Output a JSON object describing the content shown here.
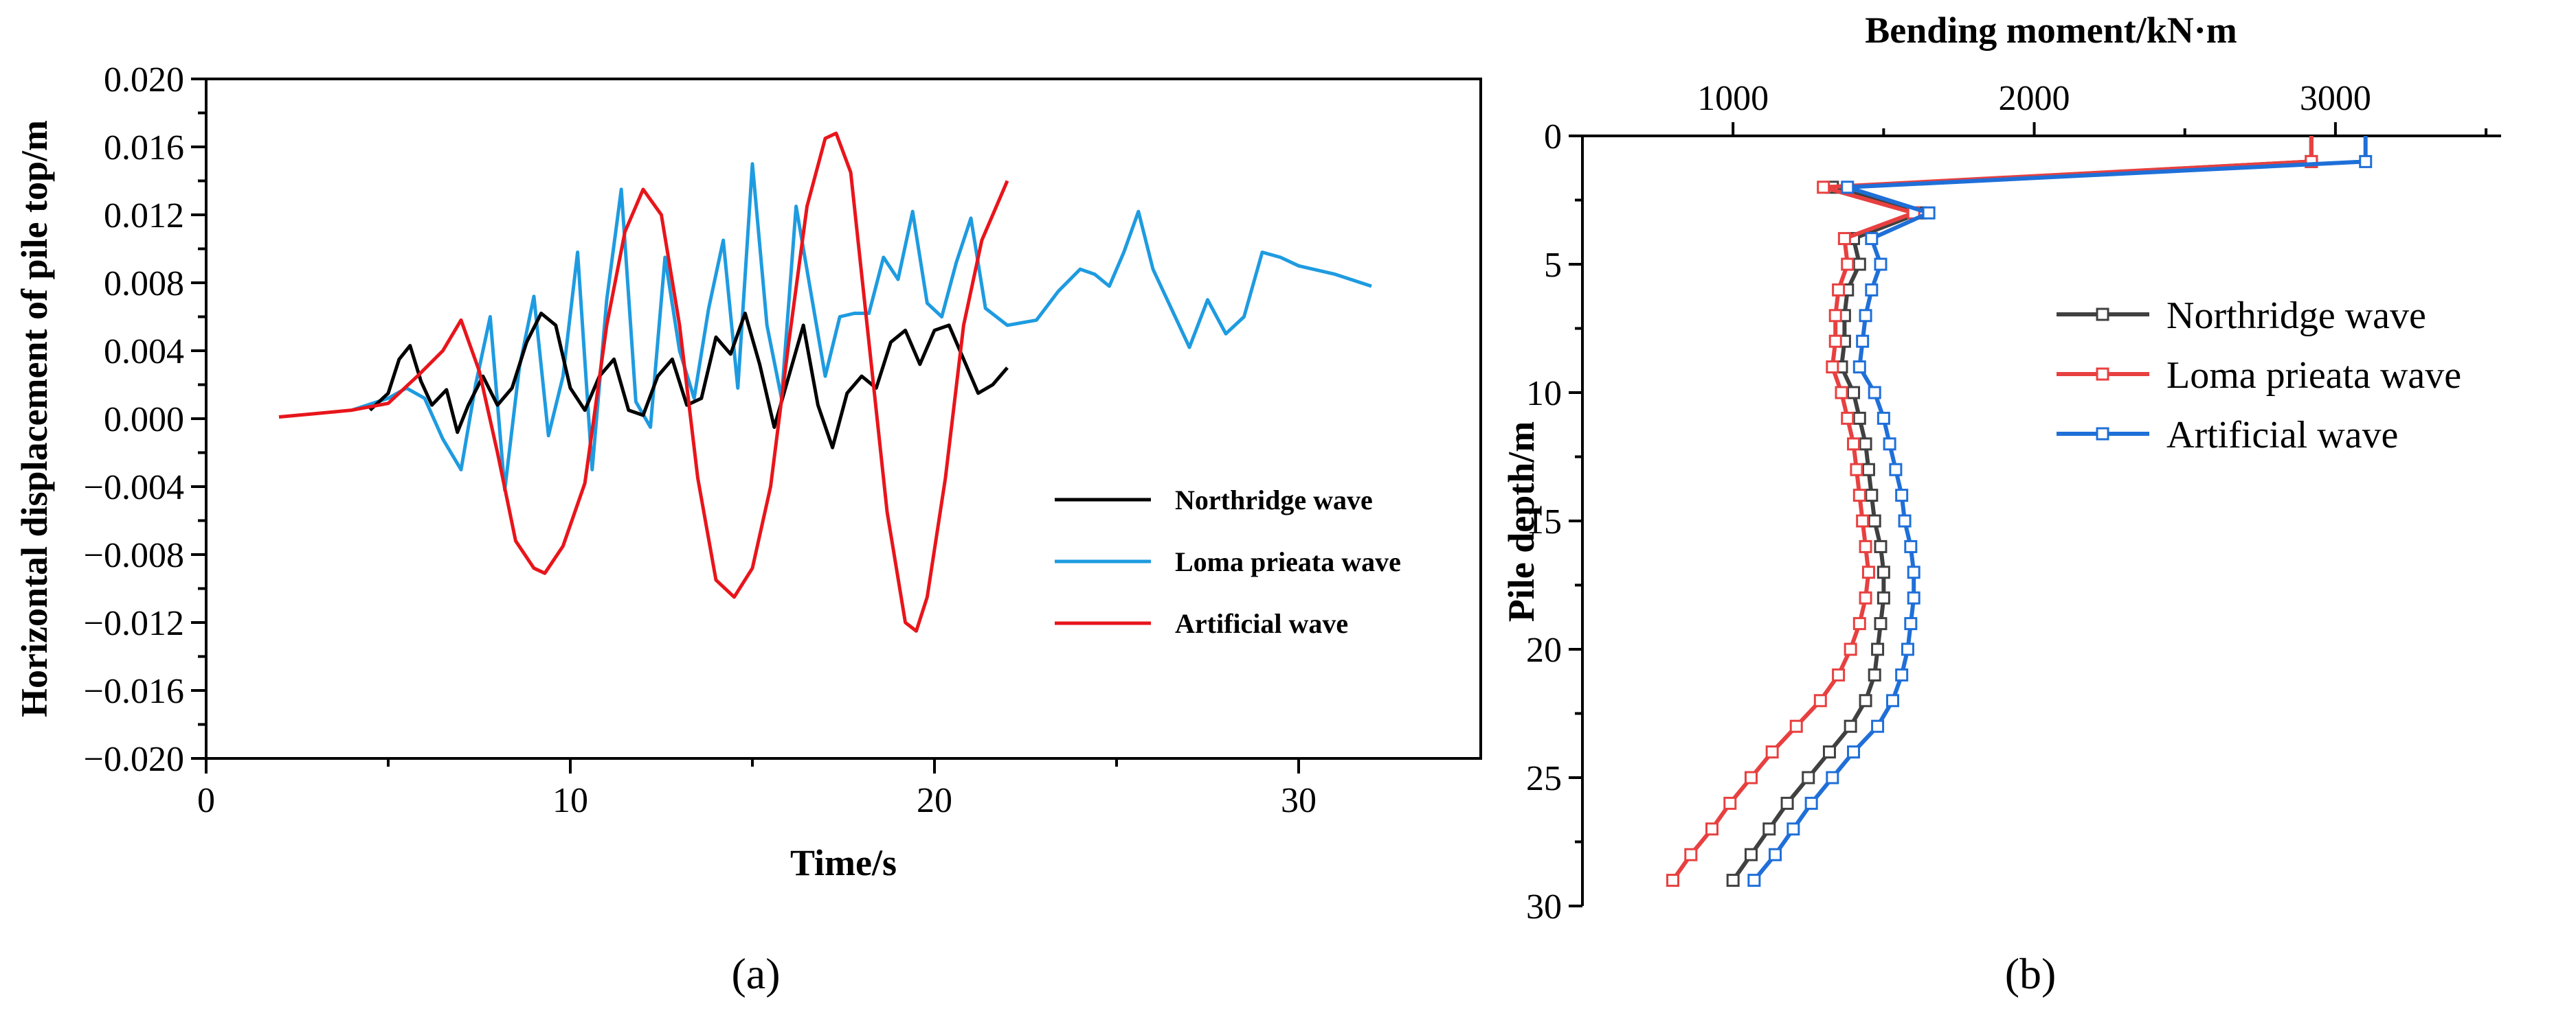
{
  "chart_data": [
    {
      "id": "a",
      "type": "line",
      "panel_label": "(a)",
      "xlabel": "Time/s",
      "ylabel": "Horizontal displacement of pile top/m",
      "xlim": [
        0,
        35
      ],
      "ylim": [
        -0.02,
        0.02
      ],
      "xticks": [
        "0",
        "10",
        "20",
        "30"
      ],
      "xtick_values": [
        0,
        10,
        20,
        30
      ],
      "yticks": [
        "0.020",
        "0.016",
        "0.012",
        "0.008",
        "0.004",
        "0.000",
        "−0.004",
        "−0.008",
        "−0.012",
        "−0.016",
        "−0.020"
      ],
      "ytick_values": [
        0.02,
        0.016,
        0.012,
        0.008,
        0.004,
        0.0,
        -0.004,
        -0.008,
        -0.012,
        -0.016,
        -0.02
      ],
      "legend": {
        "position": "lower-right"
      },
      "series": [
        {
          "name": "Northridge wave",
          "color": "#000000",
          "x": [
            4.5,
            5.0,
            5.3,
            5.6,
            5.9,
            6.2,
            6.6,
            6.9,
            7.2,
            7.6,
            8.0,
            8.4,
            8.8,
            9.2,
            9.6,
            10.0,
            10.4,
            10.8,
            11.2,
            11.6,
            12.0,
            12.4,
            12.8,
            13.2,
            13.6,
            14.0,
            14.4,
            14.8,
            15.2,
            15.6,
            16.0,
            16.4,
            16.8,
            17.2,
            17.6,
            18.0,
            18.4,
            18.8,
            19.2,
            19.6,
            20.0,
            20.4,
            20.8,
            21.2,
            21.6,
            22.0
          ],
          "y": [
            0.0005,
            0.0015,
            0.0035,
            0.0043,
            0.0022,
            0.0008,
            0.0017,
            -0.0008,
            0.0008,
            0.0025,
            0.0008,
            0.0018,
            0.0045,
            0.0062,
            0.0055,
            0.0018,
            0.0005,
            0.0025,
            0.0035,
            0.0005,
            0.0002,
            0.0025,
            0.0035,
            0.0008,
            0.0012,
            0.0048,
            0.0038,
            0.0062,
            0.0032,
            -0.0005,
            0.0025,
            0.0055,
            0.0008,
            -0.0017,
            0.0015,
            0.0025,
            0.0018,
            0.0045,
            0.0052,
            0.0032,
            0.0052,
            0.0055,
            0.0035,
            0.0015,
            0.002,
            0.003
          ]
        },
        {
          "name": "Loma prieata wave",
          "color": "#1e9be0",
          "x": [
            4.0,
            5.0,
            5.5,
            6.0,
            6.5,
            7.0,
            7.4,
            7.8,
            8.2,
            8.6,
            9.0,
            9.4,
            9.8,
            10.2,
            10.6,
            11.0,
            11.4,
            11.8,
            12.2,
            12.6,
            13.0,
            13.4,
            13.8,
            14.2,
            14.6,
            15.0,
            15.4,
            15.8,
            16.2,
            16.6,
            17.0,
            17.4,
            17.8,
            18.2,
            18.6,
            19.0,
            19.4,
            19.8,
            20.2,
            20.6,
            21.0,
            21.4,
            22.0,
            22.8,
            23.4,
            24.0,
            24.4,
            24.8,
            25.2,
            25.6,
            26.0,
            26.5,
            27.0,
            27.5,
            28.0,
            28.5,
            29.0,
            29.5,
            30.0,
            31.0,
            32.0
          ],
          "y": [
            0.0005,
            0.0012,
            0.0018,
            0.0012,
            -0.0012,
            -0.003,
            0.002,
            0.006,
            -0.0042,
            0.003,
            0.0072,
            -0.001,
            0.0025,
            0.0098,
            -0.003,
            0.007,
            0.0135,
            0.001,
            -0.0005,
            0.0095,
            0.004,
            0.0012,
            0.0065,
            0.0105,
            0.0018,
            0.015,
            0.0055,
            0.0012,
            0.0125,
            0.0075,
            0.0025,
            0.006,
            0.0062,
            0.0062,
            0.0095,
            0.0082,
            0.0122,
            0.0068,
            0.006,
            0.0092,
            0.0118,
            0.0065,
            0.0055,
            0.0058,
            0.0075,
            0.0088,
            0.0085,
            0.0078,
            0.0098,
            0.0122,
            0.0088,
            0.0065,
            0.0042,
            0.007,
            0.005,
            0.006,
            0.0098,
            0.0095,
            0.009,
            0.0085,
            0.0078
          ]
        },
        {
          "name": "Artificial wave",
          "color": "#e8151b",
          "x": [
            2.0,
            3.0,
            4.0,
            5.0,
            5.8,
            6.5,
            7.0,
            7.5,
            8.0,
            8.5,
            9.0,
            9.3,
            9.8,
            10.4,
            11.0,
            11.5,
            12.0,
            12.5,
            13.0,
            13.5,
            14.0,
            14.5,
            15.0,
            15.5,
            16.0,
            16.5,
            17.0,
            17.3,
            17.7,
            18.2,
            18.7,
            19.2,
            19.5,
            19.8,
            20.3,
            20.8,
            21.3,
            22.0
          ],
          "y": [
            0.0001,
            0.0003,
            0.0005,
            0.0009,
            0.0025,
            0.004,
            0.0058,
            0.0028,
            -0.002,
            -0.0072,
            -0.0088,
            -0.0091,
            -0.0075,
            -0.0038,
            0.0055,
            0.011,
            0.0135,
            0.012,
            0.0055,
            -0.0035,
            -0.0095,
            -0.0105,
            -0.0088,
            -0.004,
            0.0045,
            0.0125,
            0.0165,
            0.0168,
            0.0145,
            0.0045,
            -0.0055,
            -0.012,
            -0.0125,
            -0.0105,
            -0.0035,
            0.0055,
            0.0105,
            0.014
          ]
        }
      ]
    },
    {
      "id": "b",
      "type": "line",
      "panel_label": "(b)",
      "xlabel": "Bending moment/kN·m",
      "ylabel": "Pile depth/m",
      "xlim": [
        500,
        3550
      ],
      "ylim": [
        0,
        30
      ],
      "y_inverted": true,
      "xticks": [
        "1000",
        "2000",
        "3000"
      ],
      "xtick_values": [
        1000,
        2000,
        3000
      ],
      "yticks": [
        "0",
        "5",
        "10",
        "15",
        "20",
        "25",
        "30"
      ],
      "ytick_values": [
        0,
        5,
        10,
        15,
        20,
        25,
        30
      ],
      "legend": {
        "position": "middle-right"
      },
      "series": [
        {
          "name": "Northridge wave",
          "color": "#404040",
          "depth": [
            1,
            2,
            3,
            4,
            5,
            6,
            7,
            8,
            9,
            10,
            11,
            12,
            13,
            14,
            15,
            16,
            17,
            18,
            19,
            20,
            21,
            22,
            23,
            24,
            25,
            26,
            27,
            28,
            29
          ],
          "values": [
            2920,
            1330,
            1620,
            1400,
            1420,
            1380,
            1370,
            1370,
            1360,
            1400,
            1420,
            1440,
            1450,
            1460,
            1470,
            1490,
            1500,
            1500,
            1490,
            1480,
            1470,
            1440,
            1390,
            1320,
            1250,
            1180,
            1120,
            1060,
            1000
          ]
        },
        {
          "name": "Loma prieata wave",
          "color": "#e84040",
          "depth": [
            1,
            2,
            3,
            4,
            5,
            6,
            7,
            8,
            9,
            10,
            11,
            12,
            13,
            14,
            15,
            16,
            17,
            18,
            19,
            20,
            21,
            22,
            23,
            24,
            25,
            26,
            27,
            28,
            29
          ],
          "values": [
            2920,
            1300,
            1600,
            1370,
            1380,
            1350,
            1340,
            1340,
            1330,
            1360,
            1380,
            1400,
            1410,
            1420,
            1430,
            1440,
            1450,
            1440,
            1420,
            1390,
            1350,
            1290,
            1210,
            1130,
            1060,
            990,
            930,
            860,
            800
          ]
        },
        {
          "name": "Artificial wave",
          "color": "#1f6fd8",
          "depth": [
            1,
            2,
            3,
            4,
            5,
            6,
            7,
            8,
            9,
            10,
            11,
            12,
            13,
            14,
            15,
            16,
            17,
            18,
            19,
            20,
            21,
            22,
            23,
            24,
            25,
            26,
            27,
            28,
            29
          ],
          "values": [
            3100,
            1380,
            1650,
            1460,
            1490,
            1460,
            1440,
            1430,
            1420,
            1470,
            1500,
            1520,
            1540,
            1560,
            1570,
            1590,
            1600,
            1600,
            1590,
            1580,
            1560,
            1530,
            1480,
            1400,
            1330,
            1260,
            1200,
            1140,
            1070
          ]
        }
      ]
    }
  ]
}
